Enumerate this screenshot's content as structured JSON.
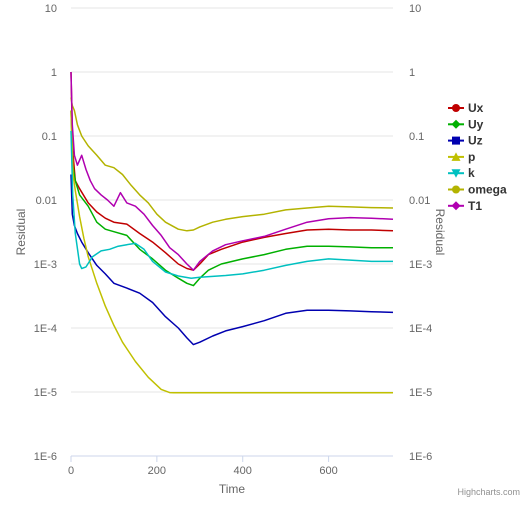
{
  "chart_data": {
    "type": "line",
    "xlabel": "Time",
    "ylabel": "Residual",
    "ylabel_right": "Residual",
    "y_scale": "log",
    "xlim": [
      0,
      750
    ],
    "ylim": [
      1e-06,
      10
    ],
    "x_ticks": [
      0,
      200,
      400,
      600
    ],
    "x_tick_labels": [
      "0",
      "200",
      "400",
      "600"
    ],
    "y_ticks": [
      1e-06,
      1e-05,
      0.0001,
      0.001,
      0.01,
      0.1,
      1,
      10
    ],
    "y_tick_labels": [
      "1E-6",
      "1E-5",
      "1E-4",
      "1E-3",
      "0.01",
      "0.1",
      "1",
      "10"
    ],
    "grid": true,
    "legend_position": "right",
    "credits": "Highcharts.com",
    "series": [
      {
        "name": "Ux",
        "color": "#c00000",
        "marker": "circle",
        "x": [
          0,
          4,
          10,
          20,
          40,
          60,
          80,
          100,
          130,
          160,
          190,
          220,
          250,
          270,
          285,
          300,
          320,
          350,
          400,
          450,
          500,
          550,
          600,
          650,
          700,
          750
        ],
        "y": [
          1,
          0.06,
          0.02,
          0.015,
          0.009,
          0.0065,
          0.0052,
          0.0045,
          0.0042,
          0.003,
          0.0022,
          0.0015,
          0.001,
          0.00085,
          0.0008,
          0.001,
          0.0014,
          0.0017,
          0.0022,
          0.0026,
          0.003,
          0.0034,
          0.0035,
          0.0034,
          0.0034,
          0.0033
        ]
      },
      {
        "name": "Uy",
        "color": "#00b000",
        "marker": "diamond",
        "x": [
          0,
          4,
          10,
          20,
          40,
          60,
          80,
          100,
          130,
          160,
          190,
          220,
          250,
          270,
          285,
          300,
          320,
          350,
          400,
          450,
          500,
          550,
          600,
          650,
          700,
          750
        ],
        "y": [
          0.25,
          0.035,
          0.02,
          0.012,
          0.008,
          0.0045,
          0.0035,
          0.0032,
          0.0028,
          0.0017,
          0.0012,
          0.0008,
          0.0006,
          0.0005,
          0.00046,
          0.0006,
          0.0008,
          0.001,
          0.0012,
          0.0014,
          0.0017,
          0.0019,
          0.0019,
          0.00185,
          0.0018,
          0.0018
        ]
      },
      {
        "name": "Uz",
        "color": "#0000b0",
        "marker": "square",
        "x": [
          0,
          3,
          8,
          15,
          25,
          40,
          60,
          80,
          100,
          130,
          160,
          190,
          220,
          250,
          270,
          285,
          300,
          330,
          360,
          400,
          450,
          500,
          550,
          600,
          650,
          700,
          750
        ],
        "y": [
          0.025,
          0.006,
          0.004,
          0.003,
          0.0022,
          0.0015,
          0.00095,
          0.0007,
          0.0005,
          0.00042,
          0.00035,
          0.00025,
          0.00015,
          0.0001,
          7e-05,
          5.5e-05,
          6e-05,
          7.5e-05,
          9e-05,
          0.000105,
          0.00013,
          0.00017,
          0.00019,
          0.00019,
          0.000185,
          0.00018,
          0.000175
        ]
      },
      {
        "name": "p",
        "color": "#c0c000",
        "marker": "triangle",
        "x": [
          0,
          5,
          10,
          20,
          30,
          40,
          60,
          80,
          100,
          120,
          150,
          180,
          210,
          230,
          240,
          250,
          300,
          350,
          400,
          450,
          500,
          550,
          600,
          650,
          700,
          750
        ],
        "y": [
          0.25,
          0.025,
          0.014,
          0.0055,
          0.0025,
          0.0013,
          0.0005,
          0.00022,
          0.00011,
          6e-05,
          3e-05,
          1.7e-05,
          1.1e-05,
          9.8e-06,
          9.7e-06,
          9.7e-06,
          9.7e-06,
          9.7e-06,
          9.7e-06,
          9.7e-06,
          9.7e-06,
          9.7e-06,
          9.7e-06,
          9.7e-06,
          9.7e-06,
          9.7e-06
        ]
      },
      {
        "name": "k",
        "color": "#00c0c0",
        "marker": "triangle-down",
        "x": [
          0,
          4,
          10,
          20,
          25,
          35,
          50,
          70,
          90,
          110,
          130,
          150,
          170,
          190,
          220,
          250,
          280,
          300,
          330,
          360,
          400,
          450,
          500,
          550,
          600,
          650,
          700,
          750
        ],
        "y": [
          0.12,
          0.012,
          0.003,
          0.001,
          0.00085,
          0.0009,
          0.0013,
          0.0016,
          0.0017,
          0.0019,
          0.002,
          0.0021,
          0.0017,
          0.0011,
          0.00075,
          0.00065,
          0.0006,
          0.00062,
          0.00064,
          0.00066,
          0.0007,
          0.0008,
          0.00095,
          0.0011,
          0.0012,
          0.00115,
          0.0011,
          0.0011
        ]
      },
      {
        "name": "omega",
        "color": "#b3b300",
        "marker": "circle",
        "x": [
          0,
          3,
          8,
          15,
          25,
          40,
          60,
          80,
          100,
          120,
          140,
          160,
          180,
          200,
          220,
          250,
          270,
          285,
          300,
          330,
          360,
          400,
          450,
          500,
          550,
          600,
          650,
          700,
          750
        ],
        "y": [
          0.4,
          0.3,
          0.25,
          0.15,
          0.1,
          0.07,
          0.05,
          0.035,
          0.032,
          0.025,
          0.017,
          0.012,
          0.009,
          0.006,
          0.0045,
          0.0035,
          0.0033,
          0.0034,
          0.0038,
          0.0045,
          0.005,
          0.0055,
          0.006,
          0.007,
          0.0075,
          0.008,
          0.0078,
          0.0076,
          0.0075
        ]
      },
      {
        "name": "T1",
        "color": "#b000b0",
        "marker": "diamond",
        "x": [
          0,
          3,
          8,
          15,
          25,
          35,
          45,
          55,
          70,
          85,
          100,
          115,
          130,
          150,
          170,
          190,
          210,
          230,
          250,
          270,
          285,
          300,
          330,
          360,
          400,
          450,
          500,
          550,
          600,
          650,
          700,
          750
        ],
        "y": [
          1,
          0.15,
          0.05,
          0.035,
          0.05,
          0.03,
          0.02,
          0.015,
          0.012,
          0.01,
          0.008,
          0.013,
          0.009,
          0.008,
          0.006,
          0.004,
          0.0028,
          0.0018,
          0.0014,
          0.001,
          0.0008,
          0.0011,
          0.0016,
          0.002,
          0.0023,
          0.0027,
          0.0035,
          0.0045,
          0.0051,
          0.0053,
          0.0052,
          0.005
        ]
      }
    ]
  }
}
